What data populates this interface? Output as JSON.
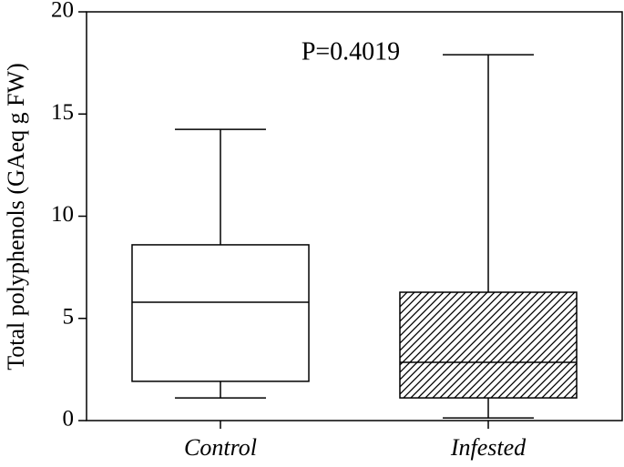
{
  "chart_data": {
    "type": "box",
    "y_label": "Total polyphenols (GAeq g FW)",
    "annotation": "P=0.4019",
    "categories": [
      "Control",
      "Infested"
    ],
    "min": [
      1.11,
      0.13
    ],
    "q1": [
      1.92,
      1.11
    ],
    "median": [
      5.79,
      2.85
    ],
    "q3": [
      8.6,
      6.28
    ],
    "max": [
      14.25,
      17.9
    ],
    "hatch": [
      false,
      true
    ],
    "color": "#000000",
    "ylim": [
      0,
      20
    ],
    "yticks": [
      0,
      5,
      10,
      15,
      20
    ]
  }
}
